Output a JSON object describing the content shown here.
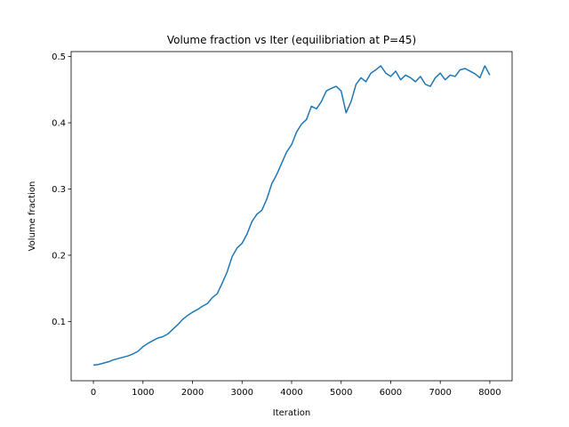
{
  "chart_data": {
    "type": "line",
    "title": "Volume fraction vs Iter (equilibriation at P=45)",
    "xlabel": "Iteration",
    "ylabel": "Volume fraction",
    "xlim": [
      -450,
      8450
    ],
    "ylim": [
      0.0105,
      0.5075
    ],
    "xticks": [
      0,
      1000,
      2000,
      3000,
      4000,
      5000,
      6000,
      7000,
      8000
    ],
    "xtick_labels": [
      "0",
      "1000",
      "2000",
      "3000",
      "4000",
      "5000",
      "6000",
      "7000",
      "8000"
    ],
    "yticks": [
      0.1,
      0.2,
      0.3,
      0.4,
      0.5
    ],
    "ytick_labels": [
      "0.1",
      "0.2",
      "0.3",
      "0.4",
      "0.5"
    ],
    "grid": false,
    "colors": {
      "series": "#1f77b4"
    },
    "series": [
      {
        "x": [
          0,
          100,
          200,
          300,
          400,
          500,
          600,
          700,
          800,
          900,
          1000,
          1100,
          1200,
          1300,
          1400,
          1500,
          1600,
          1700,
          1800,
          1900,
          2000,
          2100,
          2200,
          2300,
          2400,
          2500,
          2600,
          2700,
          2800,
          2900,
          3000,
          3100,
          3200,
          3300,
          3400,
          3500,
          3600,
          3700,
          3800,
          3900,
          4000,
          4100,
          4200,
          4300,
          4400,
          4500,
          4600,
          4700,
          4800,
          4900,
          5000,
          5100,
          5200,
          5300,
          5400,
          5500,
          5600,
          5700,
          5800,
          5900,
          6000,
          6100,
          6200,
          6300,
          6400,
          6500,
          6600,
          6700,
          6800,
          6900,
          7000,
          7100,
          7200,
          7300,
          7400,
          7500,
          7600,
          7700,
          7800,
          7900,
          8000
        ],
        "values": [
          0.034,
          0.035,
          0.037,
          0.039,
          0.042,
          0.044,
          0.046,
          0.048,
          0.051,
          0.055,
          0.062,
          0.067,
          0.071,
          0.075,
          0.077,
          0.081,
          0.088,
          0.095,
          0.103,
          0.109,
          0.114,
          0.118,
          0.123,
          0.127,
          0.136,
          0.142,
          0.158,
          0.175,
          0.198,
          0.211,
          0.218,
          0.232,
          0.251,
          0.262,
          0.268,
          0.285,
          0.308,
          0.322,
          0.339,
          0.356,
          0.367,
          0.386,
          0.398,
          0.405,
          0.425,
          0.421,
          0.432,
          0.448,
          0.452,
          0.455,
          0.448,
          0.415,
          0.432,
          0.458,
          0.468,
          0.462,
          0.475,
          0.48,
          0.486,
          0.475,
          0.47,
          0.478,
          0.465,
          0.472,
          0.468,
          0.462,
          0.47,
          0.458,
          0.455,
          0.468,
          0.475,
          0.465,
          0.472,
          0.47,
          0.48,
          0.482,
          0.478,
          0.474,
          0.468,
          0.486,
          0.472
        ]
      }
    ]
  }
}
